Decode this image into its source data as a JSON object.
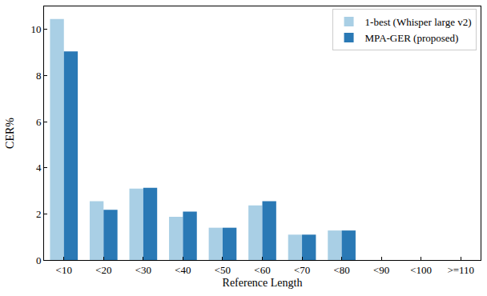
{
  "chart_data": {
    "type": "bar",
    "x_label": "Reference Length",
    "y_label": "CER%",
    "categories": [
      "<10",
      "<20",
      "<30",
      "<40",
      "<50",
      "<60",
      "<70",
      "<80",
      "<90",
      "<100",
      ">=110"
    ],
    "series": [
      {
        "name": "1-best (Whisper large v2)",
        "color": "#a9cfe5",
        "values": [
          10.45,
          2.55,
          3.1,
          1.87,
          1.4,
          2.37,
          1.1,
          1.28,
          null,
          null,
          null
        ]
      },
      {
        "name": "MPA-GER (proposed)",
        "color": "#2a79b5",
        "values": [
          9.05,
          2.18,
          3.13,
          2.1,
          1.4,
          2.55,
          1.1,
          1.28,
          null,
          null,
          null
        ]
      }
    ],
    "ylim": [
      0,
      11
    ],
    "yticks": [
      0,
      2,
      4,
      6,
      8,
      10
    ],
    "grid": false,
    "legend": "upper right"
  }
}
